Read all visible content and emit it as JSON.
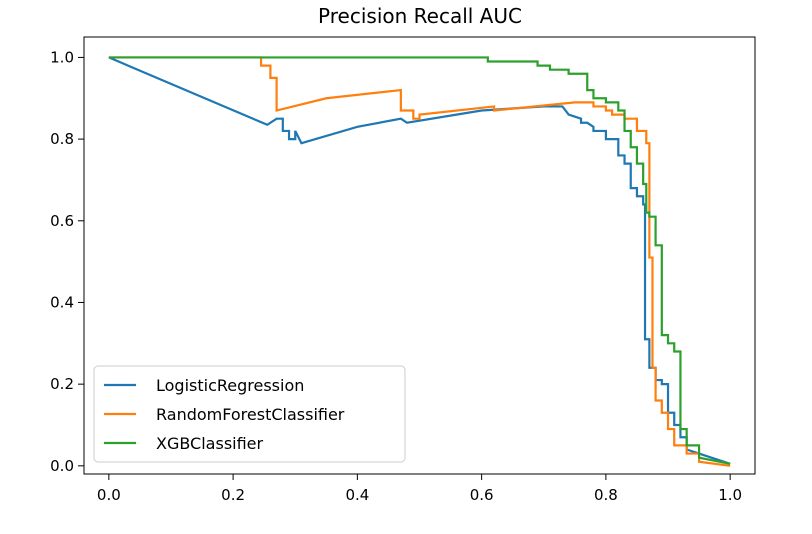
{
  "chart_data": {
    "type": "line",
    "title": "Precision Recall AUC",
    "xlabel": "",
    "ylabel": "",
    "xlim": [
      -0.04,
      1.04
    ],
    "ylim": [
      -0.02,
      1.05
    ],
    "xticks": [
      0.0,
      0.2,
      0.4,
      0.6,
      0.8,
      1.0
    ],
    "xtick_labels": [
      "0.0",
      "0.2",
      "0.4",
      "0.6",
      "0.8",
      "1.0"
    ],
    "yticks": [
      0.0,
      0.2,
      0.4,
      0.6,
      0.8,
      1.0
    ],
    "ytick_labels": [
      "0.0",
      "0.2",
      "0.4",
      "0.6",
      "0.8",
      "1.0"
    ],
    "grid": false,
    "legend_position": "lower-left",
    "series": [
      {
        "name": "LogisticRegression",
        "color": "#1f77b4",
        "x": [
          0.0,
          0.255,
          0.27,
          0.28,
          0.28,
          0.29,
          0.29,
          0.3,
          0.3,
          0.31,
          0.4,
          0.47,
          0.48,
          0.6,
          0.7,
          0.73,
          0.74,
          0.76,
          0.76,
          0.77,
          0.78,
          0.78,
          0.79,
          0.8,
          0.8,
          0.82,
          0.82,
          0.83,
          0.83,
          0.84,
          0.84,
          0.85,
          0.85,
          0.86,
          0.86,
          0.863,
          0.863,
          0.87,
          0.87,
          0.88,
          0.88,
          0.89,
          0.89,
          0.9,
          0.9,
          0.91,
          0.91,
          0.92,
          0.92,
          0.93,
          0.93,
          0.95,
          0.97,
          1.0
        ],
        "y": [
          1.0,
          0.835,
          0.85,
          0.85,
          0.82,
          0.82,
          0.8,
          0.8,
          0.82,
          0.79,
          0.83,
          0.85,
          0.84,
          0.87,
          0.88,
          0.88,
          0.86,
          0.85,
          0.84,
          0.84,
          0.83,
          0.82,
          0.82,
          0.82,
          0.8,
          0.8,
          0.76,
          0.76,
          0.74,
          0.74,
          0.68,
          0.68,
          0.66,
          0.66,
          0.64,
          0.64,
          0.31,
          0.31,
          0.24,
          0.24,
          0.21,
          0.21,
          0.2,
          0.2,
          0.13,
          0.13,
          0.1,
          0.1,
          0.07,
          0.07,
          0.04,
          0.03,
          0.02,
          0.005
        ]
      },
      {
        "name": "RandomForestClassifier",
        "color": "#ff7f0e",
        "x": [
          0.0,
          0.245,
          0.245,
          0.26,
          0.26,
          0.27,
          0.27,
          0.35,
          0.47,
          0.47,
          0.49,
          0.49,
          0.5,
          0.5,
          0.62,
          0.62,
          0.75,
          0.78,
          0.78,
          0.8,
          0.8,
          0.81,
          0.81,
          0.83,
          0.83,
          0.85,
          0.85,
          0.865,
          0.865,
          0.87,
          0.87,
          0.875,
          0.875,
          0.88,
          0.88,
          0.89,
          0.89,
          0.9,
          0.9,
          0.91,
          0.91,
          0.93,
          0.93,
          0.95,
          0.95,
          1.0
        ],
        "y": [
          1.0,
          1.0,
          0.98,
          0.98,
          0.95,
          0.95,
          0.87,
          0.9,
          0.92,
          0.87,
          0.87,
          0.85,
          0.85,
          0.86,
          0.88,
          0.87,
          0.89,
          0.89,
          0.88,
          0.88,
          0.87,
          0.87,
          0.86,
          0.86,
          0.85,
          0.85,
          0.82,
          0.82,
          0.79,
          0.79,
          0.51,
          0.51,
          0.24,
          0.24,
          0.16,
          0.16,
          0.13,
          0.13,
          0.09,
          0.09,
          0.05,
          0.05,
          0.03,
          0.03,
          0.01,
          0.0
        ]
      },
      {
        "name": "XGBClassifier",
        "color": "#2ca02c",
        "x": [
          0.0,
          0.61,
          0.61,
          0.69,
          0.69,
          0.71,
          0.71,
          0.74,
          0.74,
          0.77,
          0.77,
          0.78,
          0.78,
          0.8,
          0.8,
          0.82,
          0.82,
          0.83,
          0.83,
          0.84,
          0.84,
          0.85,
          0.85,
          0.86,
          0.86,
          0.865,
          0.865,
          0.87,
          0.87,
          0.88,
          0.88,
          0.89,
          0.89,
          0.9,
          0.9,
          0.91,
          0.91,
          0.92,
          0.92,
          0.93,
          0.93,
          0.95,
          0.95,
          1.0
        ],
        "y": [
          1.0,
          1.0,
          0.99,
          0.99,
          0.98,
          0.98,
          0.97,
          0.97,
          0.96,
          0.96,
          0.92,
          0.92,
          0.9,
          0.9,
          0.89,
          0.89,
          0.87,
          0.87,
          0.82,
          0.82,
          0.78,
          0.78,
          0.74,
          0.74,
          0.69,
          0.69,
          0.62,
          0.62,
          0.61,
          0.61,
          0.54,
          0.54,
          0.32,
          0.32,
          0.3,
          0.3,
          0.28,
          0.28,
          0.09,
          0.09,
          0.05,
          0.05,
          0.02,
          0.005
        ]
      }
    ]
  }
}
